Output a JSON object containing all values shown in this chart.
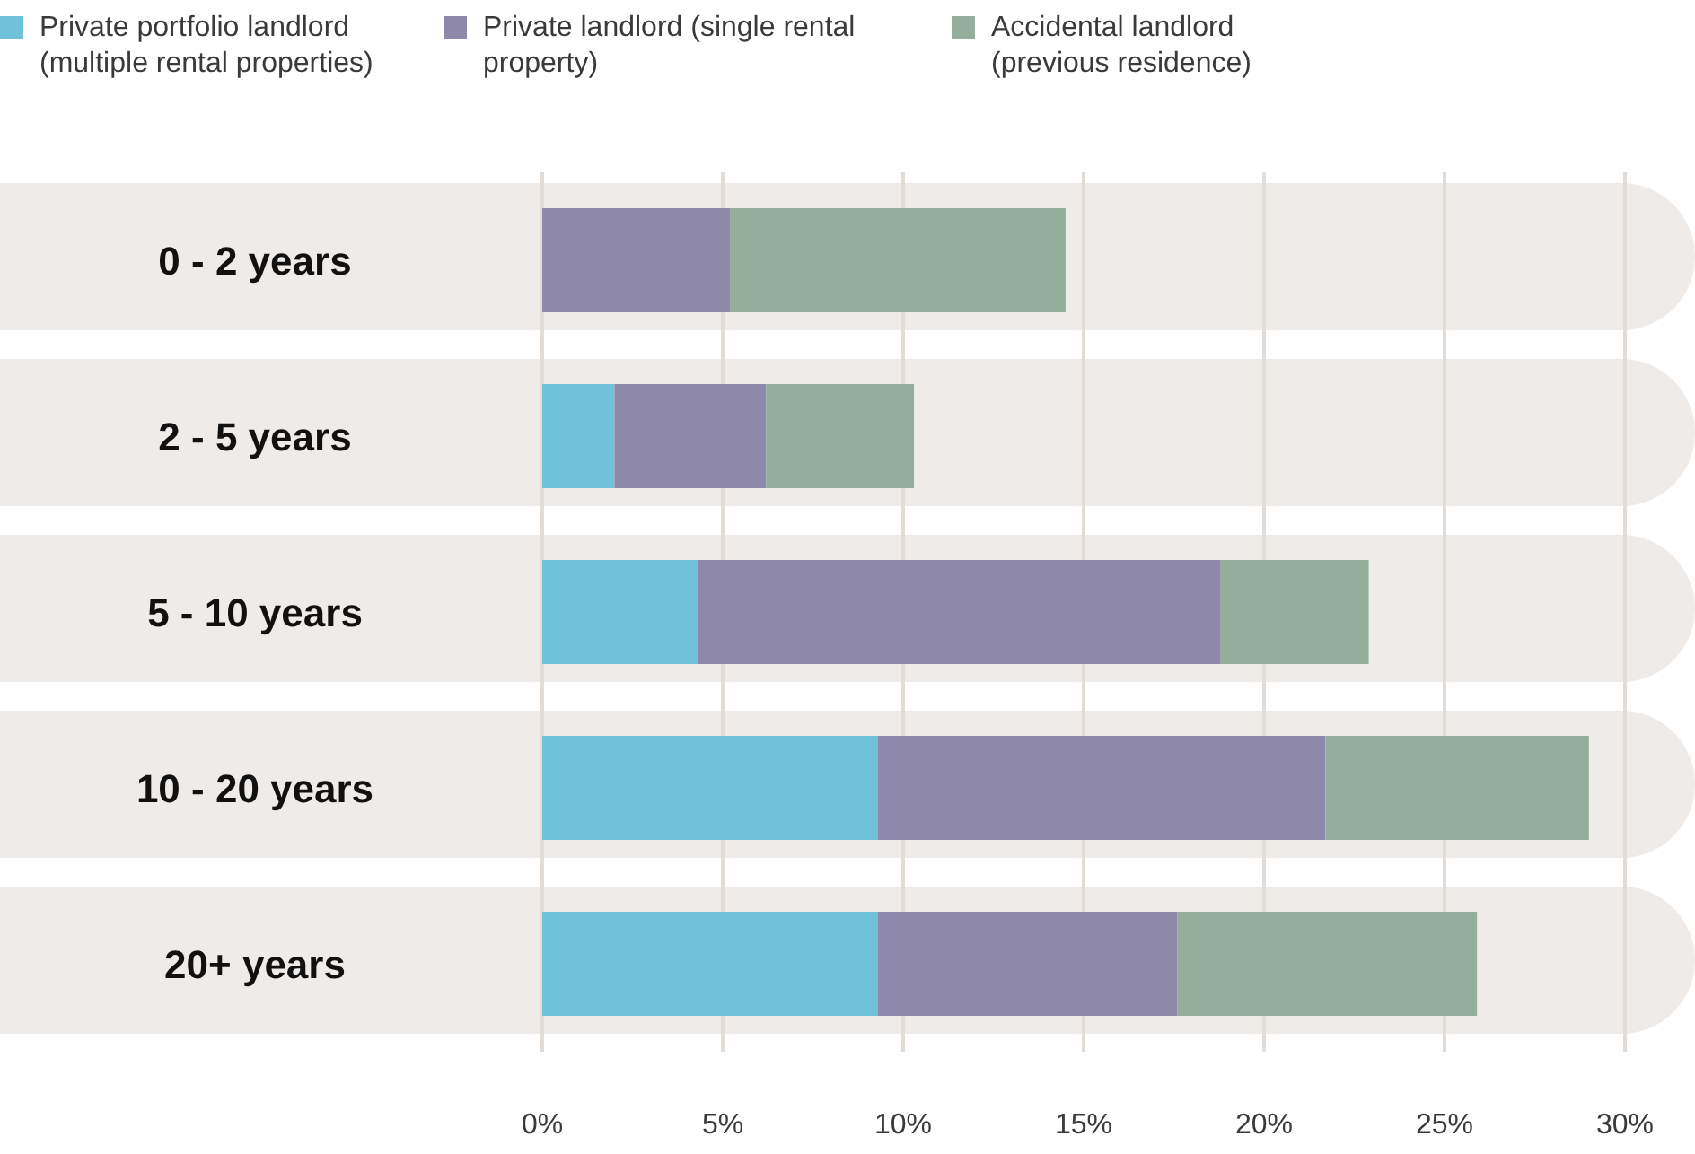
{
  "chart_data": {
    "type": "bar",
    "orientation": "horizontal",
    "stacked": true,
    "categories": [
      "0 - 2 years",
      "2 - 5 years",
      "5 - 10 years",
      "10 - 20 years",
      "20+ years"
    ],
    "series": [
      {
        "name": "Private portfolio landlord (multiple rental properties)",
        "color": "#70c1da",
        "values": [
          0,
          2.0,
          4.3,
          9.3,
          9.3
        ]
      },
      {
        "name": "Private landlord (single rental property)",
        "color": "#8e89aa",
        "values": [
          5.2,
          4.2,
          14.5,
          12.4,
          8.3
        ]
      },
      {
        "name": "Accidental landlord (previous residence)",
        "color": "#93af9c",
        "values": [
          9.3,
          4.1,
          4.1,
          7.3,
          8.3
        ]
      }
    ],
    "xlim": [
      0,
      30
    ],
    "xticks": [
      {
        "value": 0,
        "label": "0%"
      },
      {
        "value": 5,
        "label": "5%"
      },
      {
        "value": 10,
        "label": "10%"
      },
      {
        "value": 15,
        "label": "15%"
      },
      {
        "value": 20,
        "label": "20%"
      },
      {
        "value": 25,
        "label": "25%"
      },
      {
        "value": 30,
        "label": "30%"
      }
    ],
    "bands": [
      {
        "axis": "y",
        "from": "0 - 2 years",
        "to": "0 - 2 years",
        "color": "#efebe8"
      },
      {
        "axis": "y",
        "from": "2 - 5 years",
        "to": "2 - 5 years",
        "color": "#efebe8"
      },
      {
        "axis": "y",
        "from": "5 - 10 years",
        "to": "5 - 10 years",
        "color": "#efebe8"
      },
      {
        "axis": "y",
        "from": "10 - 20 years",
        "to": "10 - 20 years",
        "color": "#efebe8"
      },
      {
        "axis": "y",
        "from": "20+ years",
        "to": "20+ years",
        "color": "#efebe8"
      }
    ],
    "grid": "x",
    "legend": "top left"
  }
}
